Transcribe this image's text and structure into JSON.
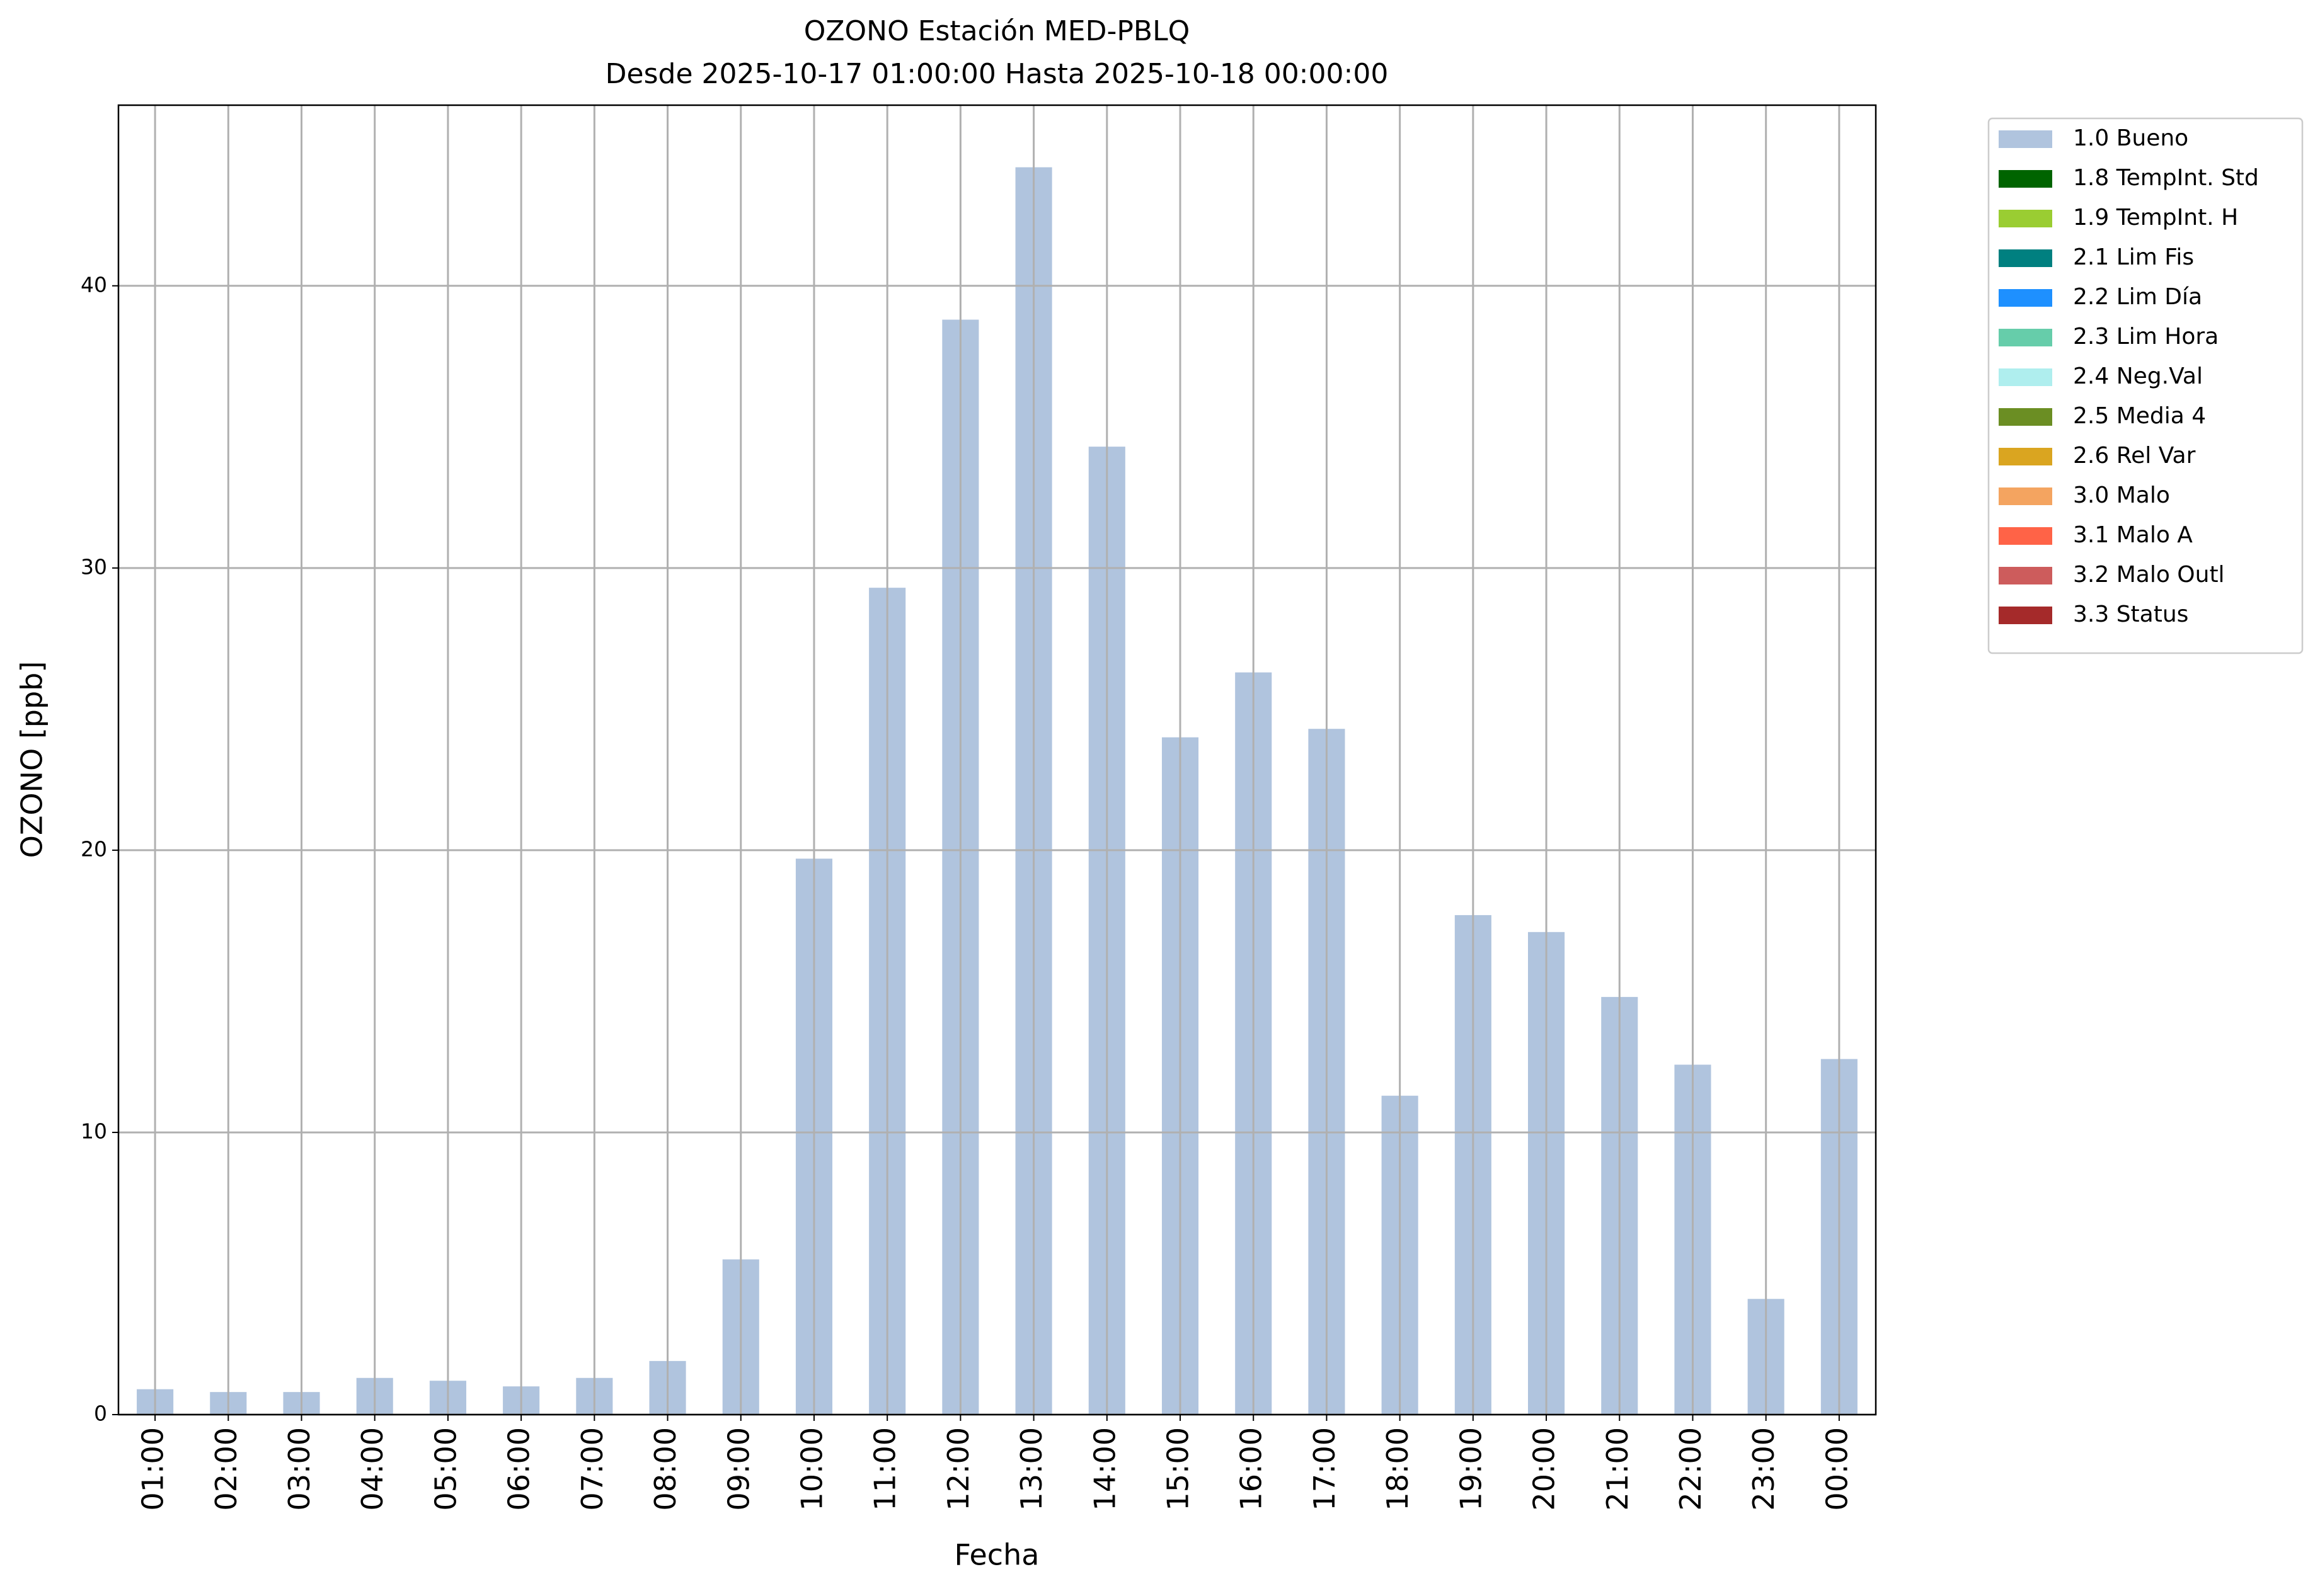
{
  "chart_data": {
    "type": "bar",
    "title": "OZONO Estación MED-PBLQ",
    "subtitle": "Desde 2025-10-17 01:00:00 Hasta 2025-10-18 00:00:00",
    "x_label": "Fecha",
    "y_label": "OZONO [ppb]",
    "categories": [
      "01:00",
      "02:00",
      "03:00",
      "04:00",
      "05:00",
      "06:00",
      "07:00",
      "08:00",
      "09:00",
      "10:00",
      "11:00",
      "12:00",
      "13:00",
      "14:00",
      "15:00",
      "16:00",
      "17:00",
      "18:00",
      "19:00",
      "20:00",
      "21:00",
      "22:00",
      "23:00",
      "00:00"
    ],
    "series": [
      {
        "name": "1.0 Bueno",
        "color": "#b0c4de",
        "values": [
          0.9,
          0.8,
          0.8,
          1.3,
          1.2,
          1.0,
          1.3,
          1.9,
          5.5,
          19.7,
          29.3,
          38.8,
          44.2,
          34.3,
          24.0,
          26.3,
          24.3,
          11.3,
          17.7,
          17.1,
          14.8,
          12.4,
          4.1,
          12.6
        ]
      },
      {
        "name": "1.8 TempInt. Std",
        "color": "#006400",
        "values": [
          null,
          null,
          null,
          null,
          null,
          null,
          null,
          null,
          null,
          null,
          null,
          null,
          null,
          null,
          null,
          null,
          null,
          null,
          null,
          null,
          null,
          null,
          null,
          null
        ]
      },
      {
        "name": "1.9 TempInt. H",
        "color": "#9acd32",
        "values": [
          null,
          null,
          null,
          null,
          null,
          null,
          null,
          null,
          null,
          null,
          null,
          null,
          null,
          null,
          null,
          null,
          null,
          null,
          null,
          null,
          null,
          null,
          null,
          null
        ]
      },
      {
        "name": "2.1 Lim Fis",
        "color": "#008080",
        "values": [
          null,
          null,
          null,
          null,
          null,
          null,
          null,
          null,
          null,
          null,
          null,
          null,
          null,
          null,
          null,
          null,
          null,
          null,
          null,
          null,
          null,
          null,
          null,
          null
        ]
      },
      {
        "name": "2.2 Lim Día",
        "color": "#1e90ff",
        "values": [
          null,
          null,
          null,
          null,
          null,
          null,
          null,
          null,
          null,
          null,
          null,
          null,
          null,
          null,
          null,
          null,
          null,
          null,
          null,
          null,
          null,
          null,
          null,
          null
        ]
      },
      {
        "name": "2.3 Lim Hora",
        "color": "#66cdaa",
        "values": [
          null,
          null,
          null,
          null,
          null,
          null,
          null,
          null,
          null,
          null,
          null,
          null,
          null,
          null,
          null,
          null,
          null,
          null,
          null,
          null,
          null,
          null,
          null,
          null
        ]
      },
      {
        "name": "2.4 Neg.Val",
        "color": "#afeeee",
        "values": [
          null,
          null,
          null,
          null,
          null,
          null,
          null,
          null,
          null,
          null,
          null,
          null,
          null,
          null,
          null,
          null,
          null,
          null,
          null,
          null,
          null,
          null,
          null,
          null
        ]
      },
      {
        "name": "2.5 Media 4",
        "color": "#6b8e23",
        "values": [
          null,
          null,
          null,
          null,
          null,
          null,
          null,
          null,
          null,
          null,
          null,
          null,
          null,
          null,
          null,
          null,
          null,
          null,
          null,
          null,
          null,
          null,
          null,
          null
        ]
      },
      {
        "name": "2.6 Rel Var",
        "color": "#daa520",
        "values": [
          null,
          null,
          null,
          null,
          null,
          null,
          null,
          null,
          null,
          null,
          null,
          null,
          null,
          null,
          null,
          null,
          null,
          null,
          null,
          null,
          null,
          null,
          null,
          null
        ]
      },
      {
        "name": "3.0 Malo",
        "color": "#f4a460",
        "values": [
          null,
          null,
          null,
          null,
          null,
          null,
          null,
          null,
          null,
          null,
          null,
          null,
          null,
          null,
          null,
          null,
          null,
          null,
          null,
          null,
          null,
          null,
          null,
          null
        ]
      },
      {
        "name": "3.1 Malo A",
        "color": "#ff6347",
        "values": [
          null,
          null,
          null,
          null,
          null,
          null,
          null,
          null,
          null,
          null,
          null,
          null,
          null,
          null,
          null,
          null,
          null,
          null,
          null,
          null,
          null,
          null,
          null,
          null
        ]
      },
      {
        "name": "3.2 Malo Outl",
        "color": "#cd5c5c",
        "values": [
          null,
          null,
          null,
          null,
          null,
          null,
          null,
          null,
          null,
          null,
          null,
          null,
          null,
          null,
          null,
          null,
          null,
          null,
          null,
          null,
          null,
          null,
          null,
          null
        ]
      },
      {
        "name": "3.3 Status",
        "color": "#a52a2a",
        "values": [
          null,
          null,
          null,
          null,
          null,
          null,
          null,
          null,
          null,
          null,
          null,
          null,
          null,
          null,
          null,
          null,
          null,
          null,
          null,
          null,
          null,
          null,
          null,
          null
        ]
      }
    ],
    "ylim": [
      0,
      46.4
    ],
    "yticks": [
      0,
      10,
      20,
      30,
      40
    ],
    "grid": true,
    "legend": "outside-upper-right"
  }
}
